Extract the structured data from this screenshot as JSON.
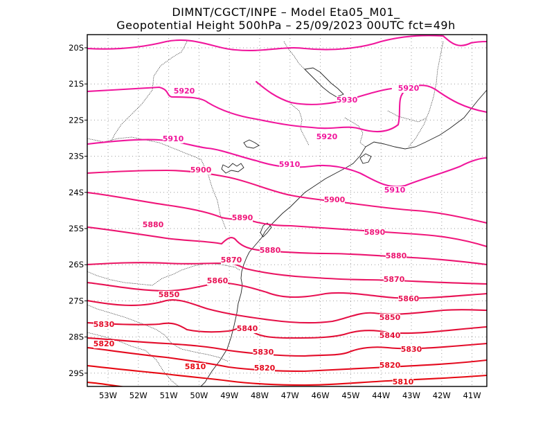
{
  "chart_data": {
    "type": "contour-map",
    "title_line1": "DIMNT/CGCT/INPE  –  Model Eta05_M01_",
    "title_line2": "Geopotential Height 500hPa  –  25/09/2023 00UTC fct=49h",
    "x_ticks": [
      "53W",
      "52W",
      "51W",
      "50W",
      "49W",
      "48W",
      "47W",
      "46W",
      "45W",
      "44W",
      "43W",
      "42W",
      "41W"
    ],
    "y_ticks": [
      "20S",
      "21S",
      "22S",
      "23S",
      "24S",
      "25S",
      "26S",
      "27S",
      "28S",
      "29S"
    ],
    "grid": true,
    "contour_interval": 10,
    "contours": [
      {
        "value": 5930,
        "label": "5930",
        "color": "#f0169c"
      },
      {
        "value": 5920,
        "label": "5920",
        "color": "#f0169c"
      },
      {
        "value": 5910,
        "label": "5910",
        "color": "#f0169c"
      },
      {
        "value": 5900,
        "label": "5900",
        "color": "#f0167e"
      },
      {
        "value": 5890,
        "label": "5890",
        "color": "#f0167a"
      },
      {
        "value": 5880,
        "label": "5880",
        "color": "#ec1470"
      },
      {
        "value": 5870,
        "label": "5870",
        "color": "#ea1462"
      },
      {
        "value": 5860,
        "label": "5860",
        "color": "#e81254"
      },
      {
        "value": 5850,
        "label": "5850",
        "color": "#e51046"
      },
      {
        "value": 5840,
        "label": "5840",
        "color": "#e30e36"
      },
      {
        "value": 5830,
        "label": "5830",
        "color": "#e30c2a"
      },
      {
        "value": 5820,
        "label": "5820",
        "color": "#e40a1e"
      },
      {
        "value": 5810,
        "label": "5810",
        "color": "#e60812"
      }
    ]
  }
}
